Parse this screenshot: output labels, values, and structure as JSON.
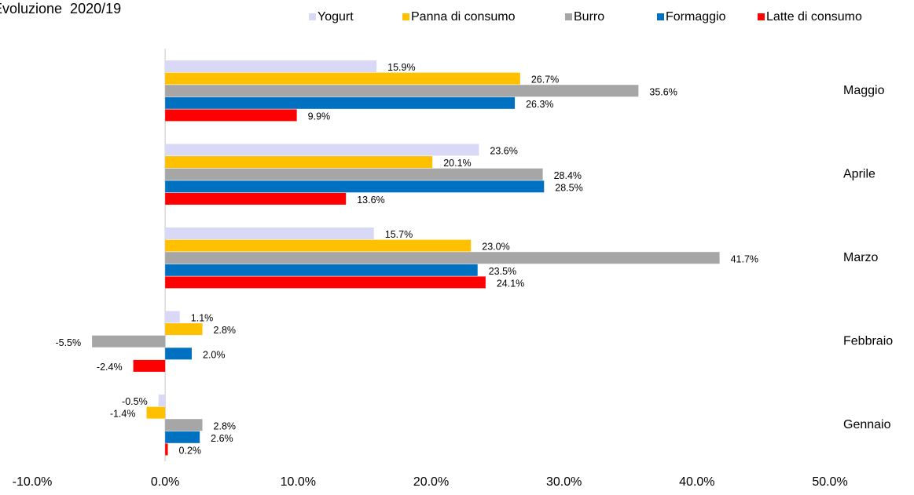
{
  "chart_data": {
    "type": "bar",
    "orientation": "horizontal",
    "title": "Evoluzione  2020/19",
    "categories": [
      "Maggio",
      "Aprile",
      "Marzo",
      "Febbraio",
      "Gennaio"
    ],
    "series": [
      {
        "name": "Yogurt",
        "color": "#d9d9f7",
        "values": [
          15.9,
          23.6,
          15.7,
          1.1,
          -0.5
        ],
        "value_labels": [
          "15.9%",
          "23.6%",
          "15.7%",
          "1.1%",
          "-0.5%"
        ]
      },
      {
        "name": "Panna di consumo",
        "color": "#ffc000",
        "values": [
          26.7,
          20.1,
          23.0,
          2.8,
          -1.4
        ],
        "value_labels": [
          "26.7%",
          "20.1%",
          "23.0%",
          "2.8%",
          "-1.4%"
        ]
      },
      {
        "name": "Burro",
        "color": "#a6a6a6",
        "values": [
          35.6,
          28.4,
          41.7,
          -5.5,
          2.8
        ],
        "value_labels": [
          "35.6%",
          "28.4%",
          "41.7%",
          "-5.5%",
          "2.8%"
        ]
      },
      {
        "name": "Formaggio",
        "color": "#0070c0",
        "values": [
          26.3,
          28.5,
          23.5,
          2.0,
          2.6
        ],
        "value_labels": [
          "26.3%",
          "28.5%",
          "23.5%",
          "2.0%",
          "2.6%"
        ]
      },
      {
        "name": "Latte di consumo",
        "color": "#ff0000",
        "values": [
          9.9,
          13.6,
          24.1,
          -2.4,
          0.2
        ],
        "value_labels": [
          "9.9%",
          "13.6%",
          "24.1%",
          "-2.4%",
          "0.2%"
        ]
      }
    ],
    "xlim": [
      -10,
      50
    ],
    "xticks": [
      {
        "value": -10,
        "label": "-10.0%"
      },
      {
        "value": 0,
        "label": "0.0%"
      },
      {
        "value": 10,
        "label": "10.0%"
      },
      {
        "value": 20,
        "label": "20.0%"
      },
      {
        "value": 30,
        "label": "30.0%"
      },
      {
        "value": 40,
        "label": "40.0%"
      },
      {
        "value": 50,
        "label": "50.0%"
      }
    ],
    "grid": false,
    "legend": "top"
  }
}
